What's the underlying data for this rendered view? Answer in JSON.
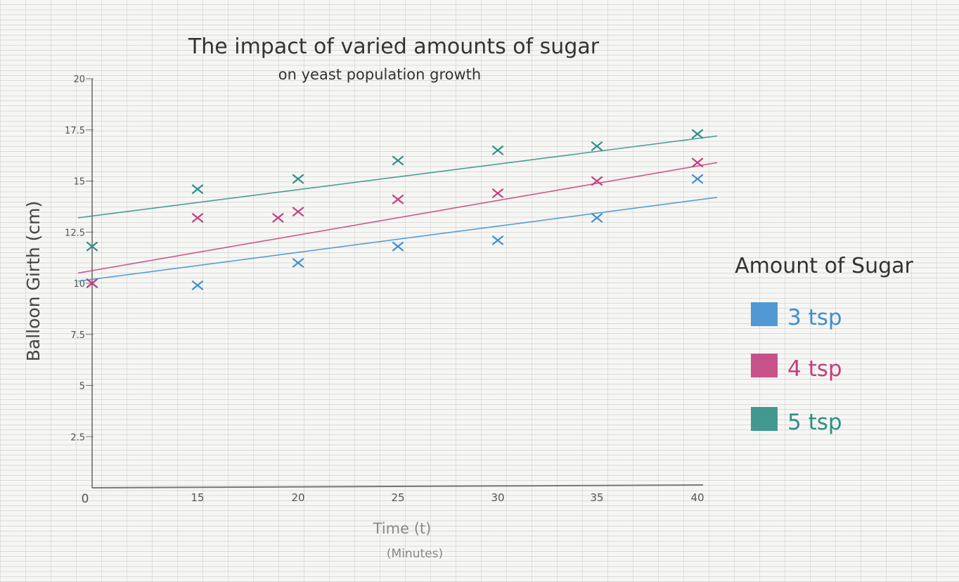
{
  "chart_data": {
    "type": "scatter",
    "title": "The impact of varied amounts of sugar",
    "subtitle": "on yeast population growth",
    "xlabel": "Time (t)",
    "xlabel_unit": "(Minutes)",
    "ylabel": "Balloon Girth (cm)",
    "x_ticks": [
      "0",
      "15",
      "20",
      "25",
      "30",
      "35",
      "40"
    ],
    "y_ticks": [
      "2.5",
      "5",
      "7.5",
      "10",
      "12.5",
      "15",
      "17.5",
      "20"
    ],
    "ylim": [
      0,
      20
    ],
    "legend_title": "Amount of Sugar",
    "series": [
      {
        "name": "3 tsp",
        "color": "#3f8fd0",
        "points": [
          [
            0,
            10
          ],
          [
            15,
            9.9
          ],
          [
            20,
            11
          ],
          [
            25,
            11.8
          ],
          [
            30,
            12.1
          ],
          [
            35,
            13.2
          ],
          [
            40,
            15.1
          ]
        ],
        "trend": [
          [
            0,
            10.1
          ],
          [
            40,
            14.2
          ]
        ]
      },
      {
        "name": "4 tsp",
        "color": "#c2407e",
        "points": [
          [
            0,
            10
          ],
          [
            15,
            13.2
          ],
          [
            19,
            13.2
          ],
          [
            20,
            13.5
          ],
          [
            25,
            14.1
          ],
          [
            30,
            14.4
          ],
          [
            35,
            15
          ],
          [
            40,
            15.9
          ]
        ],
        "trend": [
          [
            0,
            10.5
          ],
          [
            40,
            15.9
          ]
        ]
      },
      {
        "name": "5 tsp",
        "color": "#2f8f86",
        "points": [
          [
            0,
            11.8
          ],
          [
            15,
            14.6
          ],
          [
            20,
            15.1
          ],
          [
            25,
            16
          ],
          [
            30,
            16.5
          ],
          [
            35,
            16.7
          ],
          [
            40,
            17.3
          ]
        ],
        "trend": [
          [
            0,
            13.2
          ],
          [
            40,
            17.2
          ]
        ]
      }
    ]
  }
}
